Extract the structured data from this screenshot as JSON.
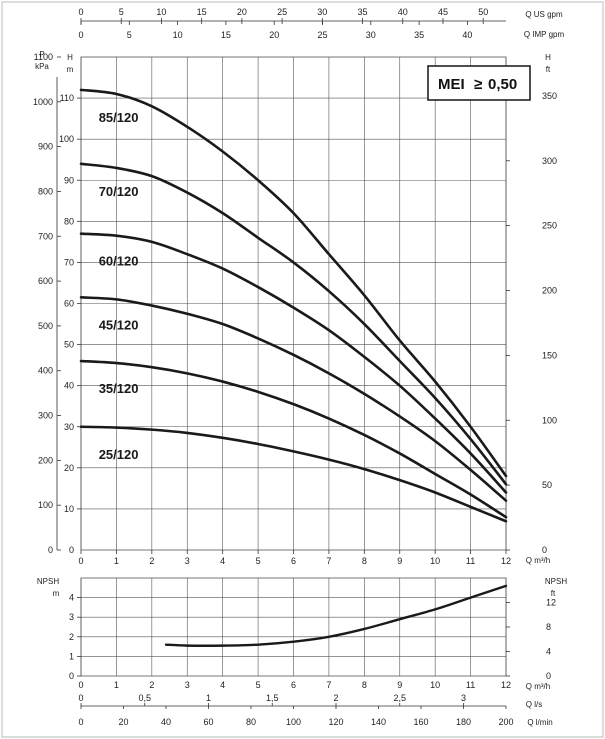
{
  "chart_data": [
    {
      "type": "line",
      "name": "head-curves",
      "x_unit": "Q m³/h",
      "xlim": [
        0,
        12
      ],
      "ylim_m": [
        0,
        120
      ],
      "ylim_kpa": [
        0,
        1100
      ],
      "ylim_ft": [
        0,
        380
      ],
      "x_ticks": [
        0,
        1,
        2,
        3,
        4,
        5,
        6,
        7,
        8,
        9,
        10,
        11,
        12
      ],
      "y_left_label_kpa": "P",
      "y_left_unit_kpa": "kPa",
      "y_left_label_m": "H",
      "y_left_unit_m": "m",
      "y_right_label": "H",
      "y_right_unit": "ft",
      "y_ticks_m": [
        10,
        20,
        30,
        40,
        50,
        60,
        70,
        80,
        90,
        100,
        110
      ],
      "y_ticks_kpa": [
        0,
        100,
        200,
        300,
        400,
        500,
        600,
        700,
        800,
        900,
        1000,
        1100
      ],
      "y_ticks_ft": [
        0,
        50,
        100,
        150,
        200,
        250,
        300,
        350
      ],
      "top_axis_gpm": {
        "unit_label": "Q US gpm",
        "ticks": [
          0,
          5,
          10,
          15,
          20,
          25,
          30,
          35,
          40,
          45,
          50
        ]
      },
      "top_axis_imp": {
        "unit_label": "Q IMP gpm",
        "ticks": [
          0,
          5,
          10,
          15,
          20,
          25,
          30,
          35,
          40
        ]
      },
      "mei_badge": {
        "prefix": "MEI",
        "symbol": "≥",
        "value": "0,50"
      },
      "series": [
        {
          "name": "85/120",
          "x": [
            0,
            1,
            2,
            3,
            4,
            5,
            6,
            7,
            8,
            9,
            10,
            11,
            12
          ],
          "y": [
            112,
            111,
            108,
            103,
            97,
            90,
            82,
            72,
            62,
            51,
            41,
            30,
            18
          ]
        },
        {
          "name": "70/120",
          "x": [
            0,
            1,
            2,
            3,
            4,
            5,
            6,
            7,
            8,
            9,
            10,
            11,
            12
          ],
          "y": [
            94,
            93,
            91,
            87,
            82,
            76,
            70,
            63,
            55,
            46,
            37,
            27,
            16
          ]
        },
        {
          "name": "60/120",
          "x": [
            0,
            1,
            2,
            3,
            4,
            5,
            6,
            7,
            8,
            9,
            10,
            11,
            12
          ],
          "y": [
            77,
            76.5,
            75,
            72,
            68.5,
            64,
            59,
            53.5,
            47,
            40,
            32,
            23.5,
            14
          ]
        },
        {
          "name": "45/120",
          "x": [
            0,
            1,
            2,
            3,
            4,
            5,
            6,
            7,
            8,
            9,
            10,
            11,
            12
          ],
          "y": [
            61.5,
            61,
            59.5,
            57.5,
            55,
            51.5,
            47.5,
            43,
            38,
            32.5,
            26.5,
            19.5,
            12
          ]
        },
        {
          "name": "35/120",
          "x": [
            0,
            1,
            2,
            3,
            4,
            5,
            6,
            7,
            8,
            9,
            10,
            11,
            12
          ],
          "y": [
            46,
            45.5,
            44.5,
            43,
            41,
            38.5,
            35.5,
            32,
            28,
            23.5,
            18.5,
            13.5,
            8
          ]
        },
        {
          "name": "25/120",
          "x": [
            0,
            1,
            2,
            3,
            4,
            5,
            6,
            7,
            8,
            9,
            10,
            11,
            12
          ],
          "y": [
            30,
            29.8,
            29.3,
            28.5,
            27.3,
            25.8,
            24,
            22,
            19.7,
            17,
            14,
            10.5,
            7
          ]
        }
      ]
    },
    {
      "type": "line",
      "name": "npsh-curve",
      "xlim": [
        0,
        12
      ],
      "ylim_m": [
        0,
        5
      ],
      "ylim_ft": [
        0,
        16
      ],
      "y_left_label": "NPSH",
      "y_left_unit": "m",
      "y_right_label": "NPSH",
      "y_right_unit": "ft",
      "y_ticks_m": [
        0,
        1,
        2,
        3,
        4
      ],
      "y_ticks_ft": [
        0,
        4,
        8,
        12
      ],
      "x_ticks": [
        0,
        1,
        2,
        3,
        4,
        5,
        6,
        7,
        8,
        9,
        10,
        11,
        12
      ],
      "x_unit": "Q m³/h",
      "series": [
        {
          "name": "NPSH",
          "x": [
            2.4,
            3,
            4,
            5,
            6,
            7,
            8,
            9,
            10,
            11,
            12
          ],
          "y": [
            1.6,
            1.55,
            1.55,
            1.6,
            1.75,
            2.0,
            2.4,
            2.9,
            3.4,
            4.0,
            4.6
          ]
        }
      ]
    }
  ],
  "bottom_axes": {
    "m3h": {
      "unit_label": "Q m³/h",
      "ticks": [
        "0",
        "1",
        "2",
        "3",
        "4",
        "5",
        "6",
        "7",
        "8",
        "9",
        "10",
        "11",
        "12"
      ]
    },
    "ls": {
      "unit_label": "Q l/s",
      "ticks": [
        "0",
        "0,5",
        "1",
        "1,5",
        "2",
        "2,5",
        "3"
      ],
      "values": [
        0,
        0.5,
        1,
        1.5,
        2,
        2.5,
        3
      ]
    },
    "lmin": {
      "unit_label": "Q l/min",
      "ticks": [
        "0",
        "20",
        "40",
        "60",
        "80",
        "100",
        "120",
        "140",
        "160",
        "180",
        "200"
      ],
      "values": [
        0,
        20,
        40,
        60,
        80,
        100,
        120,
        140,
        160,
        180,
        200
      ]
    }
  },
  "colors": {
    "curve": "#1a1a1a",
    "grid": "#555555",
    "frame": "#888888",
    "background": "#ffffff"
  }
}
